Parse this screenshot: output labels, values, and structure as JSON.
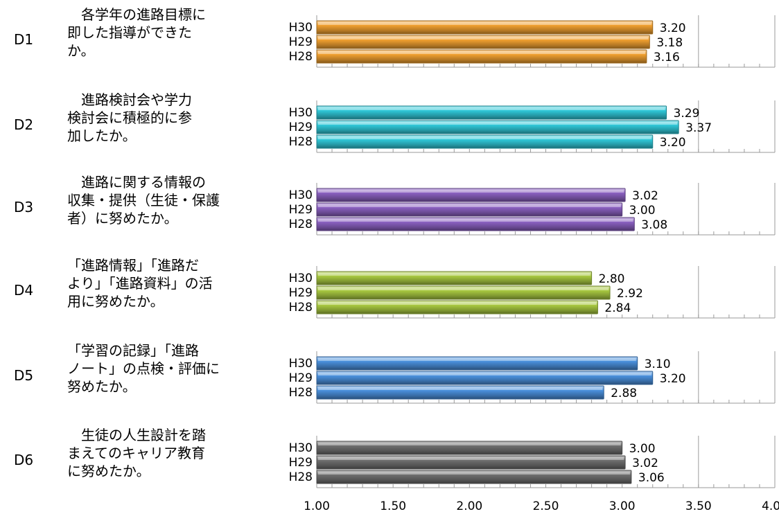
{
  "chart_data": {
    "type": "bar",
    "orientation": "horizontal",
    "xlim": [
      1.0,
      4.0
    ],
    "x_ticks": [
      "1.00",
      "1.50",
      "2.00",
      "2.50",
      "3.00",
      "3.50",
      "4.00"
    ],
    "series_labels": [
      "H30",
      "H29",
      "H28"
    ],
    "groups": [
      {
        "id": "D1",
        "question": [
          "　各学年の進路目標に",
          "即した指導ができた",
          "か。"
        ],
        "color": "#f0a030",
        "values": [
          3.2,
          3.18,
          3.16
        ],
        "value_labels": [
          "3.20",
          "3.18",
          "3.16"
        ]
      },
      {
        "id": "D2",
        "question": [
          "　進路検討会や学力",
          "検討会に積極的に参",
          "加したか。"
        ],
        "color": "#30c8d8",
        "values": [
          3.29,
          3.37,
          3.2
        ],
        "value_labels": [
          "3.29",
          "3.37",
          "3.20"
        ]
      },
      {
        "id": "D3",
        "question": [
          "　進路に関する情報の",
          "収集・提供（生徒・保護",
          "者）に努めたか。"
        ],
        "color": "#8a60c0",
        "values": [
          3.02,
          3.0,
          3.08
        ],
        "value_labels": [
          "3.02",
          "3.00",
          "3.08"
        ]
      },
      {
        "id": "D4",
        "question": [
          "「進路情報」「進路だ",
          "より」「進路資料」の活",
          "用に努めたか。"
        ],
        "color": "#a8c840",
        "values": [
          2.8,
          2.92,
          2.84
        ],
        "value_labels": [
          "2.80",
          "2.92",
          "2.84"
        ]
      },
      {
        "id": "D5",
        "question": [
          "「学習の記録」「進路",
          "ノート」の点検・評価に",
          "努めたか。"
        ],
        "color": "#4a90dc",
        "values": [
          3.1,
          3.2,
          2.88
        ],
        "value_labels": [
          "3.10",
          "3.20",
          "2.88"
        ]
      },
      {
        "id": "D6",
        "question": [
          "　生徒の人生設計を踏",
          "まえてのキャリア教育",
          "に努めたか。"
        ],
        "color": "#6e6e6e",
        "values": [
          3.0,
          3.02,
          3.06
        ],
        "value_labels": [
          "3.00",
          "3.02",
          "3.06"
        ]
      }
    ]
  }
}
